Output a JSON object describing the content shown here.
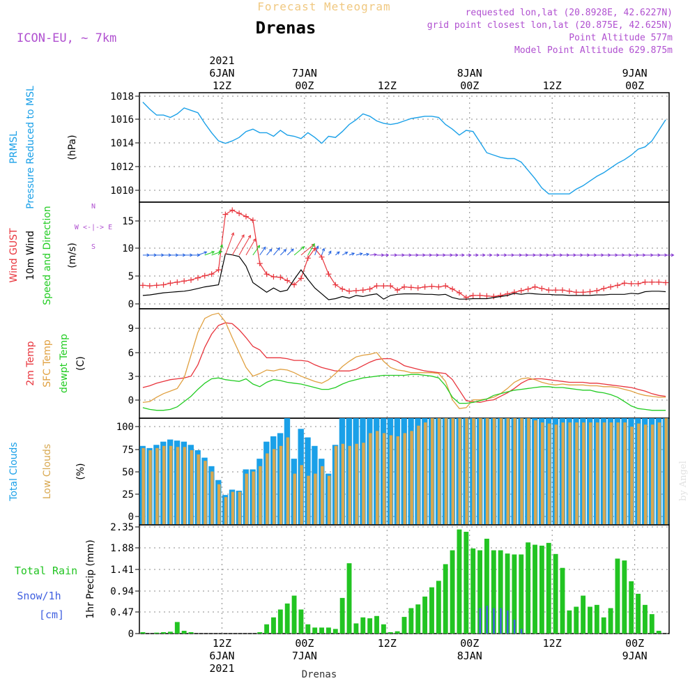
{
  "header": {
    "subtitle": "Forecast Meteogram",
    "title": "Drenas",
    "model": "ICON-EU, ~ 7km",
    "requested": "requested lon,lat (20.8928E, 42.6227N)",
    "grid_point": "grid point closest lon,lat (20.875E, 42.625N)",
    "point_altitude": "Point Altitude 577m",
    "model_altitude": "Model Point Altitude 629.875m"
  },
  "top_axis": {
    "labels": [
      {
        "hour": 12,
        "lines": [
          "2021",
          "6JAN",
          "12Z"
        ]
      },
      {
        "hour": 24,
        "lines": [
          "7JAN",
          "00Z"
        ]
      },
      {
        "hour": 36,
        "lines": [
          "12Z"
        ]
      },
      {
        "hour": 48,
        "lines": [
          "8JAN",
          "00Z"
        ]
      },
      {
        "hour": 60,
        "lines": [
          "12Z"
        ]
      },
      {
        "hour": 72,
        "lines": [
          "9JAN",
          "00Z"
        ]
      }
    ]
  },
  "bottom_axis": {
    "labels": [
      {
        "hour": 12,
        "lines": [
          "12Z",
          "6JAN",
          "2021"
        ]
      },
      {
        "hour": 24,
        "lines": [
          "00Z",
          "7JAN"
        ]
      },
      {
        "hour": 36,
        "lines": [
          "12Z"
        ]
      },
      {
        "hour": 48,
        "lines": [
          "00Z",
          "8JAN"
        ]
      },
      {
        "hour": 60,
        "lines": [
          "12Z"
        ]
      },
      {
        "hour": 72,
        "lines": [
          "00Z",
          "9JAN"
        ]
      }
    ],
    "station": "Drenas"
  },
  "watermark": "by Angel",
  "colors": {
    "pressure": "#1aa0e8",
    "gust": "#e8343c",
    "wind": "#000000",
    "temp2m": "#e8343c",
    "sfc": "#e0a040",
    "dewpt": "#22cc22",
    "total_clouds": "#1aa0e8",
    "low_clouds": "#d8a850",
    "rain": "#22c422",
    "snow": "#4060e0",
    "subtitle": "#f0c880",
    "info": "#b050d0"
  },
  "chart_data": [
    {
      "type": "line",
      "panel": "pressure",
      "ylabel_lines": [
        "PRMSL",
        "Pressure Reduced to MSL",
        "(hPa)"
      ],
      "yticks": [
        "1010",
        "1012",
        "1014",
        "1016",
        "1018"
      ],
      "ylim": [
        1008.9,
        1018.2
      ],
      "x_hours_start": 0.5,
      "x_hours_step": 1,
      "series": [
        {
          "name": "PRMSL",
          "values": [
            1017.4,
            1016.8,
            1016.3,
            1016.3,
            1016.1,
            1016.4,
            1016.9,
            1016.7,
            1016.5,
            1015.6,
            1014.8,
            1014.1,
            1013.9,
            1014.1,
            1014.4,
            1014.9,
            1015.1,
            1014.8,
            1014.8,
            1014.5,
            1015.0,
            1014.6,
            1014.5,
            1014.3,
            1014.8,
            1014.4,
            1013.9,
            1014.5,
            1014.4,
            1014.9,
            1015.5,
            1015.9,
            1016.4,
            1016.2,
            1015.8,
            1015.6,
            1015.5,
            1015.6,
            1015.8,
            1016.0,
            1016.1,
            1016.2,
            1016.2,
            1016.1,
            1015.5,
            1015.1,
            1014.6,
            1015.0,
            1014.9,
            1014.0,
            1013.1,
            1012.9,
            1012.7,
            1012.6,
            1012.6,
            1012.3,
            1011.6,
            1010.9,
            1010.1,
            1009.6,
            1009.6,
            1009.6,
            1009.6,
            1010.0,
            1010.3,
            1010.7,
            1011.1,
            1011.4,
            1011.8,
            1012.2,
            1012.5,
            1012.9,
            1013.4,
            1013.6,
            1014.1,
            1015.0,
            1015.9
          ]
        }
      ]
    },
    {
      "type": "line",
      "panel": "wind",
      "ylabel_lines": [
        "Wind GUST",
        "10m Wind",
        "Speed and Direction",
        "(m/s)"
      ],
      "compass": [
        "N",
        "W <-|-> E",
        "S"
      ],
      "yticks": [
        "0",
        "5",
        "10",
        "15"
      ],
      "ylim": [
        -1.5,
        18.5
      ],
      "x_hours_start": 0.5,
      "x_hours_step": 1,
      "series": [
        {
          "name": "Wind GUST",
          "values": [
            2.9,
            2.8,
            2.9,
            3.0,
            3.3,
            3.5,
            3.7,
            3.9,
            4.3,
            4.7,
            5.0,
            5.8,
            16.2,
            17.0,
            16.4,
            15.8,
            15.1,
            7.0,
            5.0,
            4.5,
            4.4,
            3.8,
            3.0,
            4.2,
            8.0,
            9.8,
            8.2,
            5.0,
            3.0,
            2.2,
            1.8,
            1.9,
            2.0,
            2.2,
            2.8,
            2.8,
            2.8,
            2.0,
            2.6,
            2.5,
            2.4,
            2.6,
            2.7,
            2.6,
            2.8,
            2.2,
            1.5,
            0.6,
            1.0,
            1.0,
            0.9,
            0.8,
            1.0,
            1.3,
            1.6,
            1.9,
            2.2,
            2.6,
            2.3,
            2.0,
            2.0,
            2.0,
            1.8,
            1.6,
            1.6,
            1.7,
            1.9,
            2.3,
            2.6,
            2.9,
            3.3,
            3.2,
            3.2,
            3.5,
            3.5,
            3.5,
            3.4
          ]
        },
        {
          "name": "10m Wind",
          "values": [
            1.0,
            1.1,
            1.3,
            1.5,
            1.6,
            1.7,
            1.8,
            2.0,
            2.3,
            2.6,
            2.8,
            3.0,
            8.8,
            8.6,
            8.3,
            6.5,
            3.4,
            2.5,
            1.6,
            2.4,
            1.7,
            2.0,
            4.0,
            5.8,
            4.0,
            2.4,
            1.3,
            0.2,
            0.4,
            0.8,
            0.5,
            1.0,
            0.8,
            1.1,
            1.3,
            0.3,
            1.0,
            1.2,
            1.3,
            1.3,
            1.3,
            1.2,
            1.2,
            1.1,
            1.2,
            0.6,
            0.3,
            0.3,
            0.4,
            0.4,
            0.4,
            0.6,
            0.8,
            1.0,
            1.4,
            1.2,
            1.4,
            1.3,
            1.2,
            1.2,
            1.1,
            1.1,
            1.0,
            1.0,
            1.0,
            1.0,
            1.1,
            1.1,
            1.2,
            1.2,
            1.2,
            1.4,
            1.3,
            1.7,
            1.8,
            1.8,
            1.7
          ]
        }
      ],
      "wind_direction_deg": [
        270,
        270,
        270,
        270,
        270,
        270,
        270,
        270,
        250,
        250,
        250,
        200,
        200,
        210,
        210,
        210,
        215,
        215,
        220,
        220,
        225,
        225,
        230,
        230,
        210,
        200,
        200,
        210,
        230,
        240,
        250,
        255,
        260,
        265,
        270,
        270,
        270,
        270,
        270,
        270,
        270,
        270,
        270,
        270,
        270,
        270,
        270,
        270,
        270,
        270,
        270,
        270,
        270,
        270,
        270,
        270,
        270,
        270,
        270,
        270,
        270,
        270,
        270,
        270,
        270,
        270,
        270,
        270,
        270,
        270,
        270,
        270,
        270,
        270,
        270,
        270,
        270
      ]
    },
    {
      "type": "line",
      "panel": "temperature",
      "ylabel_lines": [
        "2m Temp",
        "SFC Temp",
        "dewpt Temp",
        "(C)"
      ],
      "yticks": [
        "0",
        "3",
        "6",
        "9"
      ],
      "ylim": [
        -1.6,
        10.9
      ],
      "x_hours_start": 0.5,
      "x_hours_step": 1,
      "series": [
        {
          "name": "2m Temp",
          "values": [
            1.9,
            2.1,
            2.4,
            2.6,
            2.8,
            2.9,
            3.0,
            3.2,
            4.5,
            6.5,
            8.0,
            9.0,
            9.3,
            9.2,
            8.5,
            7.6,
            6.6,
            6.2,
            5.3,
            5.3,
            5.3,
            5.2,
            5.0,
            5.0,
            4.9,
            4.5,
            4.2,
            4.0,
            3.8,
            3.8,
            3.8,
            4.0,
            4.4,
            4.8,
            5.1,
            5.2,
            5.2,
            4.9,
            4.4,
            4.2,
            4.0,
            3.8,
            3.7,
            3.6,
            3.5,
            2.8,
            1.6,
            0.4,
            0.3,
            0.2,
            0.4,
            0.5,
            0.9,
            1.3,
            1.8,
            2.4,
            2.8,
            2.9,
            2.9,
            2.8,
            2.7,
            2.6,
            2.5,
            2.5,
            2.5,
            2.4,
            2.4,
            2.3,
            2.2,
            2.1,
            2.0,
            1.9,
            1.7,
            1.5,
            1.2,
            1.0,
            0.9
          ]
        },
        {
          "name": "SFC Temp",
          "values": [
            0.2,
            0.3,
            0.8,
            1.2,
            1.5,
            1.8,
            3.0,
            5.6,
            8.2,
            9.8,
            10.2,
            10.4,
            9.4,
            7.6,
            5.9,
            4.2,
            3.2,
            3.5,
            3.9,
            3.8,
            4.0,
            3.9,
            3.6,
            3.2,
            2.9,
            2.6,
            2.4,
            2.8,
            3.5,
            4.3,
            4.9,
            5.4,
            5.6,
            5.7,
            5.9,
            4.9,
            4.2,
            3.9,
            3.8,
            3.6,
            3.6,
            3.6,
            3.6,
            3.5,
            2.6,
            0.5,
            -0.5,
            -0.4,
            0.5,
            0.5,
            0.6,
            0.8,
            1.2,
            1.8,
            2.5,
            2.9,
            3.0,
            2.8,
            2.5,
            2.3,
            2.2,
            2.3,
            2.2,
            2.2,
            2.2,
            2.1,
            2.1,
            2.0,
            2.0,
            1.9,
            1.7,
            1.5,
            1.2,
            1.0,
            0.9,
            0.8,
            0.8
          ]
        },
        {
          "name": "dewpt Temp",
          "values": [
            -0.4,
            -0.6,
            -0.7,
            -0.7,
            -0.6,
            -0.3,
            0.3,
            0.9,
            1.7,
            2.4,
            2.9,
            3.0,
            2.8,
            2.7,
            2.6,
            2.9,
            2.3,
            2.0,
            2.5,
            2.8,
            2.7,
            2.5,
            2.4,
            2.3,
            2.1,
            1.9,
            1.7,
            1.7,
            1.9,
            2.3,
            2.6,
            2.8,
            3.0,
            3.1,
            3.2,
            3.3,
            3.3,
            3.3,
            3.3,
            3.4,
            3.4,
            3.3,
            3.2,
            3.0,
            2.1,
            0.8,
            0.1,
            0.1,
            0.2,
            0.4,
            0.6,
            1.0,
            1.2,
            1.4,
            1.6,
            1.7,
            1.8,
            1.9,
            2.0,
            2.0,
            1.9,
            1.9,
            1.8,
            1.7,
            1.6,
            1.6,
            1.4,
            1.3,
            1.1,
            0.8,
            0.3,
            -0.2,
            -0.5,
            -0.6,
            -0.7,
            -0.7,
            -0.7
          ]
        }
      ]
    },
    {
      "type": "bar",
      "panel": "clouds",
      "ylabel_lines": [
        "Total Clouds",
        "Low Clouds",
        "(%)"
      ],
      "yticks": [
        "0",
        "25",
        "50",
        "75",
        "100"
      ],
      "ylim": [
        0,
        100
      ],
      "x_hours_start": 0,
      "x_hours_step": 1,
      "series": [
        {
          "name": "Total Clouds",
          "values": [
            74,
            72,
            75,
            78,
            80,
            79,
            78,
            75,
            70,
            63,
            55,
            42,
            28,
            33,
            32,
            52,
            52,
            62,
            78,
            83,
            86,
            100,
            62,
            90,
            82,
            74,
            62,
            48,
            75,
            100,
            100,
            100,
            100,
            100,
            100,
            100,
            100,
            100,
            100,
            100,
            100,
            100,
            100,
            100,
            100,
            100,
            100,
            100,
            100,
            100,
            100,
            100,
            100,
            100,
            100,
            100,
            100,
            100,
            100,
            100,
            100,
            100,
            100,
            100,
            100,
            100,
            100,
            100,
            100,
            100,
            100,
            100,
            100,
            100,
            100,
            100,
            100
          ]
        },
        {
          "name": "Low Clouds",
          "values": [
            72,
            70,
            72,
            74,
            74,
            73,
            73,
            70,
            66,
            60,
            50,
            38,
            26,
            31,
            31,
            48,
            50,
            55,
            67,
            71,
            74,
            82,
            48,
            56,
            46,
            48,
            55,
            46,
            74,
            76,
            74,
            76,
            77,
            86,
            88,
            86,
            84,
            83,
            86,
            88,
            93,
            96,
            100,
            100,
            100,
            100,
            100,
            100,
            100,
            100,
            100,
            100,
            100,
            100,
            100,
            100,
            100,
            98,
            96,
            95,
            94,
            96,
            96,
            96,
            96,
            96,
            96,
            96,
            96,
            96,
            96,
            92,
            95,
            94,
            94,
            96,
            100
          ]
        }
      ]
    },
    {
      "type": "bar",
      "panel": "precip",
      "ylabel_lines": [
        "Total  Rain",
        "Snow/1h",
        "[cm]",
        "1hr Precip (mm)"
      ],
      "yticks": [
        "0",
        "0.47",
        "0.94",
        "1.41",
        "1.88",
        "2.35"
      ],
      "ylim": [
        0,
        2.35
      ],
      "x_hours_start": 0.5,
      "x_hours_step": 1,
      "series": [
        {
          "name": "Total Rain",
          "values": [
            0.03,
            0.0,
            0.02,
            0.03,
            0.04,
            0.25,
            0.06,
            0.03,
            0.0,
            0.0,
            0.0,
            0.0,
            0.0,
            0.0,
            0.0,
            0.0,
            0.0,
            0.03,
            0.2,
            0.35,
            0.52,
            0.65,
            0.82,
            0.52,
            0.2,
            0.13,
            0.13,
            0.13,
            0.1,
            0.77,
            1.52,
            0.22,
            0.35,
            0.33,
            0.38,
            0.2,
            0.03,
            0.05,
            0.36,
            0.55,
            0.63,
            0.8,
            1.0,
            1.14,
            1.5,
            1.8,
            2.25,
            2.2,
            1.84,
            1.8,
            2.05,
            1.8,
            1.8,
            1.73,
            1.71,
            1.71,
            1.97,
            1.92,
            1.9,
            1.96,
            1.72,
            1.42,
            0.5,
            0.58,
            0.82,
            0.58,
            0.62,
            0.35,
            0.55,
            1.62,
            1.58,
            1.13,
            0.86,
            0.62,
            0.42,
            0.06,
            0.0
          ]
        },
        {
          "name": "Snow/1h",
          "values": [
            0,
            0,
            0,
            0,
            0,
            0,
            0,
            0,
            0,
            0,
            0,
            0,
            0,
            0,
            0,
            0,
            0,
            0,
            0,
            0,
            0,
            0,
            0,
            0,
            0,
            0,
            0,
            0,
            0,
            0,
            0,
            0,
            0,
            0,
            0,
            0,
            0,
            0,
            0,
            0,
            0,
            0,
            0,
            0,
            0,
            0,
            0,
            0,
            0,
            0.55,
            0.6,
            0.55,
            0.55,
            0.5,
            0.3,
            0.1,
            0,
            0,
            0,
            0,
            0,
            0,
            0,
            0,
            0,
            0,
            0,
            0,
            0,
            0,
            0,
            0,
            0,
            0,
            0,
            0,
            0
          ]
        }
      ]
    }
  ]
}
